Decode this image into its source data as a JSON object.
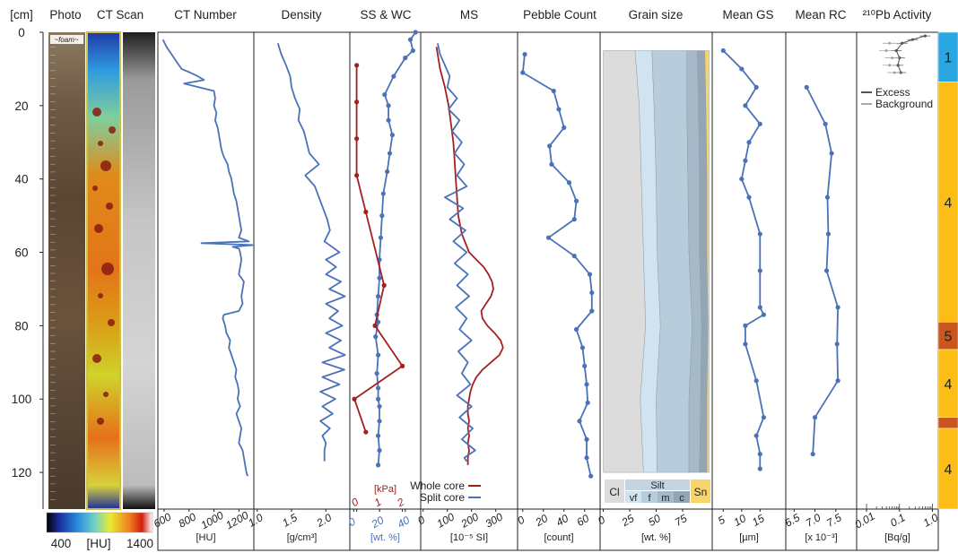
{
  "depth_axis": {
    "unit_label": "[cm]",
    "ticks": [
      0,
      20,
      40,
      60,
      80,
      100,
      120
    ],
    "range": [
      0,
      130
    ]
  },
  "hu_scale": {
    "min_label": "400",
    "unit_label": "[HU]",
    "max_label": "1400"
  },
  "photo_note": "~foam~",
  "colors": {
    "profile": "#4a72b8",
    "shear": "#a32020",
    "sand": "#f8d46c",
    "unit_blue": "#2aa6e0",
    "unit_yellow": "#fbbd16",
    "unit_orange": "#c9551f"
  },
  "chart_data": [
    {
      "id": "photo",
      "type": "image",
      "title": "Photo"
    },
    {
      "id": "ctscan",
      "type": "image",
      "title": "CT Scan"
    },
    {
      "id": "ct",
      "type": "line",
      "title": "CT Number",
      "xlabel": "[HU]",
      "xlim": [
        550,
        1320
      ],
      "ticks": [
        "600",
        "800",
        "1000",
        "1200"
      ],
      "tick_values": [
        600,
        800,
        1000,
        1200
      ],
      "series": [
        {
          "depth": [
            2,
            4,
            6,
            8,
            10,
            11,
            12,
            13,
            14,
            16,
            18,
            20,
            22,
            24,
            26,
            28,
            30,
            32,
            34,
            36,
            38,
            40,
            42,
            44,
            46,
            48,
            50,
            52,
            54,
            56,
            57,
            57.5,
            58,
            58.5,
            59,
            60,
            62,
            64,
            66,
            68,
            70,
            72,
            74,
            76,
            77,
            78,
            80,
            82,
            84,
            86,
            88,
            90,
            92,
            94,
            96,
            98,
            100,
            102,
            104,
            106,
            108,
            110,
            112,
            114,
            116,
            118,
            120,
            121
          ],
          "values": [
            590,
            620,
            660,
            700,
            740,
            810,
            870,
            920,
            760,
            1000,
            1010,
            1000,
            1020,
            1010,
            1030,
            1040,
            1050,
            1060,
            1080,
            1110,
            1120,
            1140,
            1150,
            1160,
            1180,
            1190,
            1200,
            1210,
            1220,
            1200,
            1280,
            900,
            1320,
            1150,
            1200,
            1210,
            1220,
            1210,
            1200,
            1240,
            1230,
            1220,
            1230,
            1200,
            1080,
            1070,
            1090,
            1100,
            1130,
            1120,
            1140,
            1160,
            1180,
            1170,
            1190,
            1200,
            1190,
            1210,
            1180,
            1200,
            1220,
            1210,
            1200,
            1230,
            1240,
            1250,
            1260,
            1270
          ]
        }
      ]
    },
    {
      "id": "density",
      "type": "line",
      "title": "Density",
      "xlabel": "[g/cm³]",
      "xlim": [
        0.95,
        2.35
      ],
      "ticks": [
        "1.0",
        "1.5",
        "2.0"
      ],
      "tick_values": [
        1.0,
        1.5,
        2.0
      ],
      "series": [
        {
          "depth": [
            3,
            6,
            9,
            12,
            15,
            18,
            21,
            24,
            27,
            30,
            33,
            36,
            39,
            42,
            45,
            48,
            51,
            54,
            57,
            60,
            62,
            64,
            66,
            68,
            70,
            72,
            74,
            76,
            78,
            80,
            82,
            84,
            86,
            88,
            90,
            92,
            94,
            96,
            98,
            100,
            102,
            104,
            106,
            108,
            110,
            112,
            114,
            117
          ],
          "values": [
            1.3,
            1.35,
            1.42,
            1.48,
            1.5,
            1.55,
            1.62,
            1.6,
            1.68,
            1.72,
            1.76,
            1.9,
            1.7,
            1.84,
            1.9,
            1.96,
            2.02,
            2.06,
            1.98,
            2.2,
            2.0,
            2.15,
            2.0,
            2.22,
            2.05,
            2.28,
            2.0,
            2.18,
            2.05,
            2.24,
            2.0,
            2.22,
            2.05,
            2.28,
            1.95,
            2.27,
            1.95,
            2.2,
            1.92,
            2.14,
            1.95,
            2.1,
            1.92,
            2.06,
            1.95,
            2.0,
            1.98,
            1.98
          ]
        }
      ]
    },
    {
      "id": "sswc",
      "type": "line",
      "title": "SS & WC",
      "xlabel": "[wt. %]",
      "xlim": [
        -3,
        52
      ],
      "ticks": [
        "0",
        "20",
        "40"
      ],
      "tick_values": [
        0,
        20,
        40
      ],
      "ticks2_label": "[kPa]",
      "ticks2": [
        "0",
        "1",
        "2"
      ],
      "x2lim": [
        -0.3,
        2.8
      ],
      "series": [
        {
          "name": "WC",
          "depth": [
            0,
            2,
            5,
            7,
            12,
            17,
            20,
            24,
            28,
            33,
            38,
            44,
            50,
            56,
            62,
            67,
            72,
            77,
            79,
            83,
            88,
            93,
            97,
            100,
            102,
            106,
            110,
            114,
            118
          ],
          "values": [
            48,
            44,
            46,
            40,
            31,
            24,
            27,
            27,
            30,
            28,
            26,
            23,
            22,
            21,
            20,
            20,
            19,
            18,
            19,
            17,
            19,
            18,
            19,
            19,
            20,
            20,
            19,
            20,
            19
          ]
        },
        {
          "name": "SS",
          "depth": [
            9,
            19,
            29,
            39,
            49,
            69,
            80,
            91,
            100,
            109
          ],
          "values": [
            0.0,
            0.0,
            0.0,
            0.0,
            0.4,
            1.2,
            0.8,
            2.0,
            -0.1,
            0.4
          ]
        }
      ]
    },
    {
      "id": "ms",
      "type": "line",
      "title": "MS",
      "xlabel": "[10⁻⁵ SI]",
      "xlim": [
        -10,
        390
      ],
      "ticks": [
        "0",
        "100",
        "200",
        "300"
      ],
      "tick_values": [
        0,
        100,
        200,
        300
      ],
      "legend": [
        "Whole core",
        "Split core"
      ],
      "series": [
        {
          "name": "Whole core",
          "depth": [
            4,
            10,
            15,
            20,
            25,
            30,
            35,
            40,
            45,
            50,
            55,
            60,
            62,
            64,
            66,
            68,
            70,
            72,
            74,
            76,
            78,
            80,
            82,
            84,
            86,
            88,
            90,
            92,
            94,
            96,
            98,
            100,
            102,
            104,
            106,
            108,
            110,
            112,
            114,
            116,
            118
          ],
          "values": [
            55,
            70,
            90,
            105,
            115,
            125,
            130,
            135,
            140,
            145,
            160,
            190,
            220,
            250,
            270,
            285,
            290,
            280,
            260,
            240,
            245,
            265,
            295,
            320,
            330,
            315,
            280,
            245,
            220,
            205,
            195,
            190,
            185,
            185,
            190,
            185,
            190,
            185,
            190,
            185,
            185
          ]
        },
        {
          "name": "Split core",
          "depth": [
            3,
            6,
            9,
            12,
            15,
            18,
            21,
            24,
            27,
            30,
            33,
            36,
            39,
            42,
            45,
            48,
            51,
            54,
            57,
            60,
            63,
            66,
            69,
            72,
            75,
            78,
            81,
            84,
            87,
            90,
            93,
            96,
            99,
            102,
            105,
            108,
            111,
            114,
            116,
            117
          ],
          "values": [
            60,
            70,
            90,
            110,
            100,
            140,
            105,
            150,
            120,
            160,
            130,
            170,
            140,
            180,
            90,
            165,
            110,
            175,
            125,
            180,
            130,
            185,
            140,
            190,
            135,
            180,
            150,
            200,
            145,
            185,
            160,
            195,
            140,
            200,
            150,
            205,
            160,
            215,
            170,
            180
          ]
        }
      ]
    },
    {
      "id": "pebble",
      "type": "line",
      "title": "Pebble Count",
      "xlabel": "[count]",
      "ticks": [
        "0",
        "20",
        "40",
        "60"
      ],
      "tick_values": [
        0,
        20,
        40,
        60
      ],
      "xlim": [
        -5,
        75
      ],
      "series": [
        {
          "depth": [
            6,
            11,
            16,
            21,
            26,
            31,
            36,
            41,
            46,
            51,
            56,
            61,
            66,
            71,
            76,
            81,
            86,
            91,
            96,
            101,
            106,
            111,
            116,
            121
          ],
          "values": [
            2,
            0,
            30,
            35,
            40,
            26,
            28,
            45,
            52,
            50,
            25,
            50,
            65,
            67,
            67,
            52,
            58,
            60,
            62,
            63,
            55,
            62,
            62,
            66
          ]
        }
      ]
    },
    {
      "id": "grainsize",
      "type": "area",
      "title": "Grain size",
      "xlabel": "[wt. %]",
      "xlim": [
        -3,
        103
      ],
      "ticks": [
        "0",
        "25",
        "50",
        "75"
      ],
      "tick_values": [
        0,
        25,
        50,
        75
      ],
      "classes": [
        "Cl",
        "Silt",
        "vf",
        "f",
        "m",
        "c",
        "Sn"
      ],
      "series": [
        {
          "name": "Cl",
          "depth": [
            5,
            20,
            40,
            60,
            80,
            100,
            120
          ],
          "values": [
            30,
            34,
            36,
            38,
            40,
            35,
            38
          ]
        },
        {
          "name": "vf",
          "depth": [
            5,
            20,
            40,
            60,
            80,
            100,
            120
          ],
          "values": [
            16,
            14,
            14,
            13,
            14,
            15,
            13
          ]
        },
        {
          "name": "f",
          "depth": [
            5,
            20,
            40,
            60,
            80,
            100,
            120
          ],
          "values": [
            33,
            31,
            30,
            30,
            30,
            31,
            30
          ]
        },
        {
          "name": "m",
          "depth": [
            5,
            20,
            40,
            60,
            80,
            100,
            120
          ],
          "values": [
            10,
            11,
            11,
            10,
            9,
            11,
            10
          ]
        },
        {
          "name": "c",
          "depth": [
            5,
            20,
            40,
            60,
            80,
            100,
            120
          ],
          "values": [
            7,
            7,
            7,
            7,
            6,
            6,
            7
          ]
        },
        {
          "name": "Sn",
          "depth": [
            5,
            20,
            40,
            60,
            80,
            100,
            120
          ],
          "values": [
            4,
            3,
            2,
            2,
            1,
            2,
            2
          ]
        }
      ]
    },
    {
      "id": "meangs",
      "type": "line",
      "title": "Mean GS",
      "xlabel": "[µm]",
      "xlim": [
        2,
        22
      ],
      "ticks": [
        "5",
        "10",
        "15"
      ],
      "tick_values": [
        5,
        10,
        15
      ],
      "series": [
        {
          "depth": [
            5,
            10,
            15,
            20,
            25,
            30,
            35,
            40,
            45,
            55,
            65,
            75,
            77,
            80,
            85,
            95,
            105,
            110,
            115,
            119
          ],
          "values": [
            5,
            10,
            14,
            11,
            15,
            12,
            11,
            10,
            12,
            15,
            15,
            15,
            16,
            11,
            11,
            14,
            16,
            14,
            15,
            15
          ]
        }
      ]
    },
    {
      "id": "meanrc",
      "type": "line",
      "title": "Mean RC",
      "xlabel": "[x 10⁻³]",
      "xlim": [
        6.3,
        8.0
      ],
      "ticks": [
        "6.5",
        "7.0",
        "7.5"
      ],
      "tick_values": [
        6.5,
        7.0,
        7.5
      ],
      "series": [
        {
          "depth": [
            15,
            25,
            33,
            45,
            55,
            65,
            75,
            85,
            95,
            105,
            115
          ],
          "values": [
            6.8,
            7.25,
            7.4,
            7.3,
            7.32,
            7.28,
            7.55,
            7.53,
            7.55,
            7.0,
            6.95
          ]
        }
      ]
    },
    {
      "id": "pb210",
      "type": "scatter",
      "title": "²¹⁰Pb Activity",
      "xlabel": "[Bq/g]",
      "xscale": "log",
      "xlim": [
        0.005,
        1.5
      ],
      "ticks": [
        "0.01",
        "0.1",
        "1.0"
      ],
      "tick_values": [
        0.01,
        0.1,
        1.0
      ],
      "legend": [
        "Excess",
        "Background"
      ],
      "series": [
        {
          "name": "Excess",
          "depth": [
            1,
            2,
            3,
            5,
            7,
            9,
            11
          ],
          "values": [
            0.6,
            0.25,
            0.12,
            0.08,
            0.1,
            0.09,
            0.11
          ]
        },
        {
          "name": "Background",
          "depth": [
            3,
            5,
            7,
            9,
            11
          ],
          "values": [
            0.05,
            0.04,
            0.06,
            0.05,
            0.07
          ]
        }
      ]
    },
    {
      "id": "units",
      "type": "bar",
      "title": "",
      "categories": [
        "1",
        "4",
        "5",
        "4",
        "",
        "4"
      ],
      "values": [
        [
          0,
          13.5
        ],
        [
          13.5,
          79
        ],
        [
          79,
          86.5
        ],
        [
          86.5,
          105
        ],
        [
          105,
          108
        ],
        [
          108,
          130
        ]
      ]
    }
  ]
}
